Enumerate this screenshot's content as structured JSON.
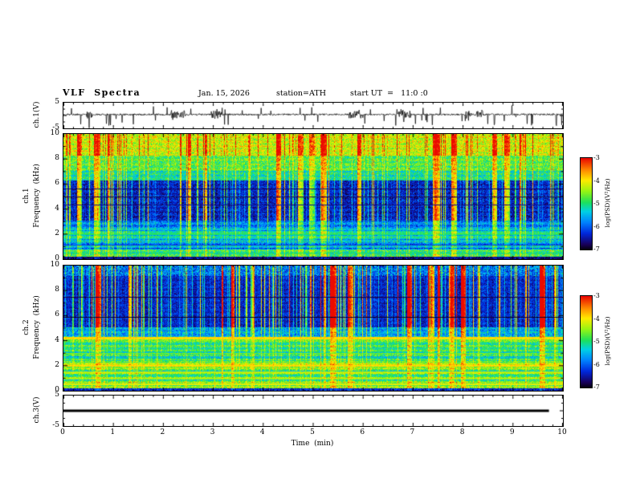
{
  "header": {
    "title": "VLF  Spectra",
    "date": "Jan. 15, 2026",
    "station": "station=ATH",
    "start_ut": "start UT  =   11:0 :0"
  },
  "labels": {
    "ch1_wave": "ch.1(V)",
    "ch1_spec_channel": "ch.1",
    "ch2_spec_channel": "ch.2",
    "freq_axis": "Frequency  (kHz)",
    "ch3_wave": "ch.3(V)"
  },
  "axes": {
    "time_label": "Time  (min)",
    "time_ticks": [
      "0",
      "1",
      "2",
      "3",
      "4",
      "5",
      "6",
      "7",
      "8",
      "9",
      "10"
    ],
    "time_lim": [
      0,
      10
    ],
    "freq_ticks": [
      "10",
      "8",
      "6",
      "4",
      "2",
      "0"
    ],
    "freq_lim": [
      0,
      10
    ],
    "volt_ticks": [
      "5",
      "-5"
    ],
    "volt_lim": [
      -5,
      5
    ]
  },
  "colorbar": {
    "label": "log(PSD)(V²/Hz)",
    "ticks": [
      "-3",
      "-4",
      "-5",
      "-6",
      "-7"
    ],
    "lim": [
      -7,
      -3
    ]
  },
  "chart_data": [
    {
      "type": "line",
      "name": "ch1-waveform",
      "title": "ch.1 broadband VLF waveform",
      "ylabel": "ch.1(V)",
      "ylim": [
        -5,
        5
      ],
      "xlim": [
        0,
        10
      ],
      "x_unit": "min",
      "description": "Dense noise trace riding near +0.4 V with frequent impulsive sferic spikes reaching about -4.5 V and +3.5 V across the full 10-minute record",
      "gen": {
        "seed": 11,
        "n": 1244,
        "base": 0.4,
        "noise": 0.32,
        "spike_prob": 0.05,
        "spike_neg": 4.3,
        "spike_pos": 3.3
      }
    },
    {
      "type": "heatmap",
      "name": "ch1-spectrogram",
      "title": "ch.1 VLF spectrogram",
      "ylabel": "ch.1 Frequency (kHz)",
      "ylim": [
        0,
        10
      ],
      "xlim": [
        0,
        10
      ],
      "x_unit": "min",
      "zlim": [
        -7,
        -3
      ],
      "zlabel": "log(PSD)(V²/Hz)",
      "description": "Yellow/green band with red impulsive streaks above ~8.3 kHz, green 7-8.3 kHz, dark blue 3-6.5 kHz cut by dense vertical cyan-green sferic streaks, cyan striped bands below 3 kHz, near-black strip at 0 kHz",
      "gen": {
        "seed": 23,
        "streak": {
          "prob": 0.32,
          "amp": 1.7,
          "burst_prob": 0.02,
          "burst_amp": 2.1
        },
        "bands": [
          {
            "f": [
              0,
              0.25
            ],
            "base": -6.7,
            "noise": 0.3,
            "streak": 0.2,
            "stripe": 0
          },
          {
            "f": [
              0.25,
              0.8
            ],
            "base": -5.1,
            "noise": 0.5,
            "streak": 0.5,
            "stripe": 0.4
          },
          {
            "f": [
              0.8,
              1.5
            ],
            "base": -5.7,
            "noise": 0.45,
            "streak": 0.5,
            "stripe": 0.5
          },
          {
            "f": [
              1.5,
              2.5
            ],
            "base": -5.35,
            "noise": 0.4,
            "streak": 0.6,
            "stripe": 0.45
          },
          {
            "f": [
              2.5,
              3.1
            ],
            "base": -5.9,
            "noise": 0.45,
            "streak": 0.9,
            "stripe": 0.3
          },
          {
            "f": [
              3.1,
              6.3
            ],
            "base": -6.5,
            "noise": 0.4,
            "streak": 1.7,
            "stripe": 0.15
          },
          {
            "f": [
              6.3,
              7.1
            ],
            "base": -5.2,
            "noise": 0.5,
            "streak": 0.8,
            "stripe": 0.2
          },
          {
            "f": [
              7.1,
              8.3
            ],
            "base": -4.8,
            "noise": 0.5,
            "streak": 0.7,
            "stripe": 0.2
          },
          {
            "f": [
              8.3,
              10.01
            ],
            "base": -4.3,
            "noise": 0.55,
            "streak": 0.9,
            "stripe": 0.2
          }
        ],
        "lines": [
          {
            "f": 2.02,
            "w": 0.05,
            "v": -5.0
          },
          {
            "f": 0.5,
            "w": 0.04,
            "v": -4.9
          }
        ],
        "dark_lines": [
          {
            "f": 5.0,
            "w": 0.05,
            "v": -6.8
          },
          {
            "f": 4.35,
            "w": 0.04,
            "v": -6.6
          },
          {
            "f": 5.65,
            "w": 0.04,
            "v": -6.6
          },
          {
            "f": 1.15,
            "w": 0.04,
            "v": -6.2
          }
        ]
      }
    },
    {
      "type": "heatmap",
      "name": "ch2-spectrogram",
      "title": "ch.2 VLF spectrogram",
      "ylabel": "ch.2 Frequency (kHz)",
      "ylim": [
        0,
        10
      ],
      "xlim": [
        0,
        10
      ],
      "x_unit": "min",
      "zlim": [
        -7,
        -3
      ],
      "zlabel": "log(PSD)(V²/Hz)",
      "description": "Very dark blue 5-10 kHz region crowded with vertical sferic streaks, bright red/yellow horizontal line near 4.2 kHz, yellow band near 2 kHz, green striped bands with yellow harmonic lines below 4 kHz, dark strip at 0 kHz",
      "gen": {
        "seed": 57,
        "streak": {
          "prob": 0.38,
          "amp": 1.9,
          "burst_prob": 0.022,
          "burst_amp": 2.6
        },
        "bands": [
          {
            "f": [
              0,
              0.25
            ],
            "base": -6.4,
            "noise": 0.4,
            "streak": 0.2,
            "stripe": 0
          },
          {
            "f": [
              0.25,
              0.8
            ],
            "base": -4.7,
            "noise": 0.5,
            "streak": 0.4,
            "stripe": 0.4
          },
          {
            "f": [
              0.8,
              1.85
            ],
            "base": -4.85,
            "noise": 0.45,
            "streak": 0.4,
            "stripe": 0.5
          },
          {
            "f": [
              1.85,
              2.4
            ],
            "base": -4.5,
            "noise": 0.4,
            "streak": 0.35,
            "stripe": 0.35
          },
          {
            "f": [
              2.4,
              3.3
            ],
            "base": -5.15,
            "noise": 0.45,
            "streak": 0.5,
            "stripe": 0.5
          },
          {
            "f": [
              3.3,
              4.0
            ],
            "base": -5.0,
            "noise": 0.45,
            "streak": 0.5,
            "stripe": 0.35
          },
          {
            "f": [
              4.0,
              4.35
            ],
            "base": -4.6,
            "noise": 0.4,
            "streak": 0.4,
            "stripe": 0.2
          },
          {
            "f": [
              4.35,
              5.1
            ],
            "base": -5.7,
            "noise": 0.5,
            "streak": 1.0,
            "stripe": 0.2
          },
          {
            "f": [
              5.1,
              9.2
            ],
            "base": -6.5,
            "noise": 0.35,
            "streak": 1.9,
            "stripe": 0.1
          },
          {
            "f": [
              9.2,
              10.01
            ],
            "base": -6.0,
            "noise": 0.6,
            "streak": 1.5,
            "stripe": 0.1
          }
        ],
        "lines": [
          {
            "f": 4.22,
            "w": 0.08,
            "v": -3.9
          },
          {
            "f": 2.0,
            "w": 0.06,
            "v": -3.9
          },
          {
            "f": 1.5,
            "w": 0.05,
            "v": -4.3
          },
          {
            "f": 1.0,
            "w": 0.05,
            "v": -4.4
          },
          {
            "f": 0.55,
            "w": 0.06,
            "v": -4.1
          },
          {
            "f": 3.0,
            "w": 0.04,
            "v": -4.6
          }
        ],
        "dark_lines": [
          {
            "f": 5.9,
            "w": 0.04,
            "v": -6.9
          },
          {
            "f": 7.5,
            "w": 0.03,
            "v": -6.8
          }
        ]
      }
    },
    {
      "type": "line",
      "name": "ch3-waveform",
      "title": "ch.3 waveform (flat)",
      "ylabel": "ch.3(V)",
      "ylim": [
        -5,
        5
      ],
      "xlim": [
        0,
        10
      ],
      "x_unit": "min",
      "value": 0,
      "x_end_min": 9.72,
      "description": "Channel 3 is a flat thick trace at 0 V ending near 9.7 min"
    }
  ]
}
